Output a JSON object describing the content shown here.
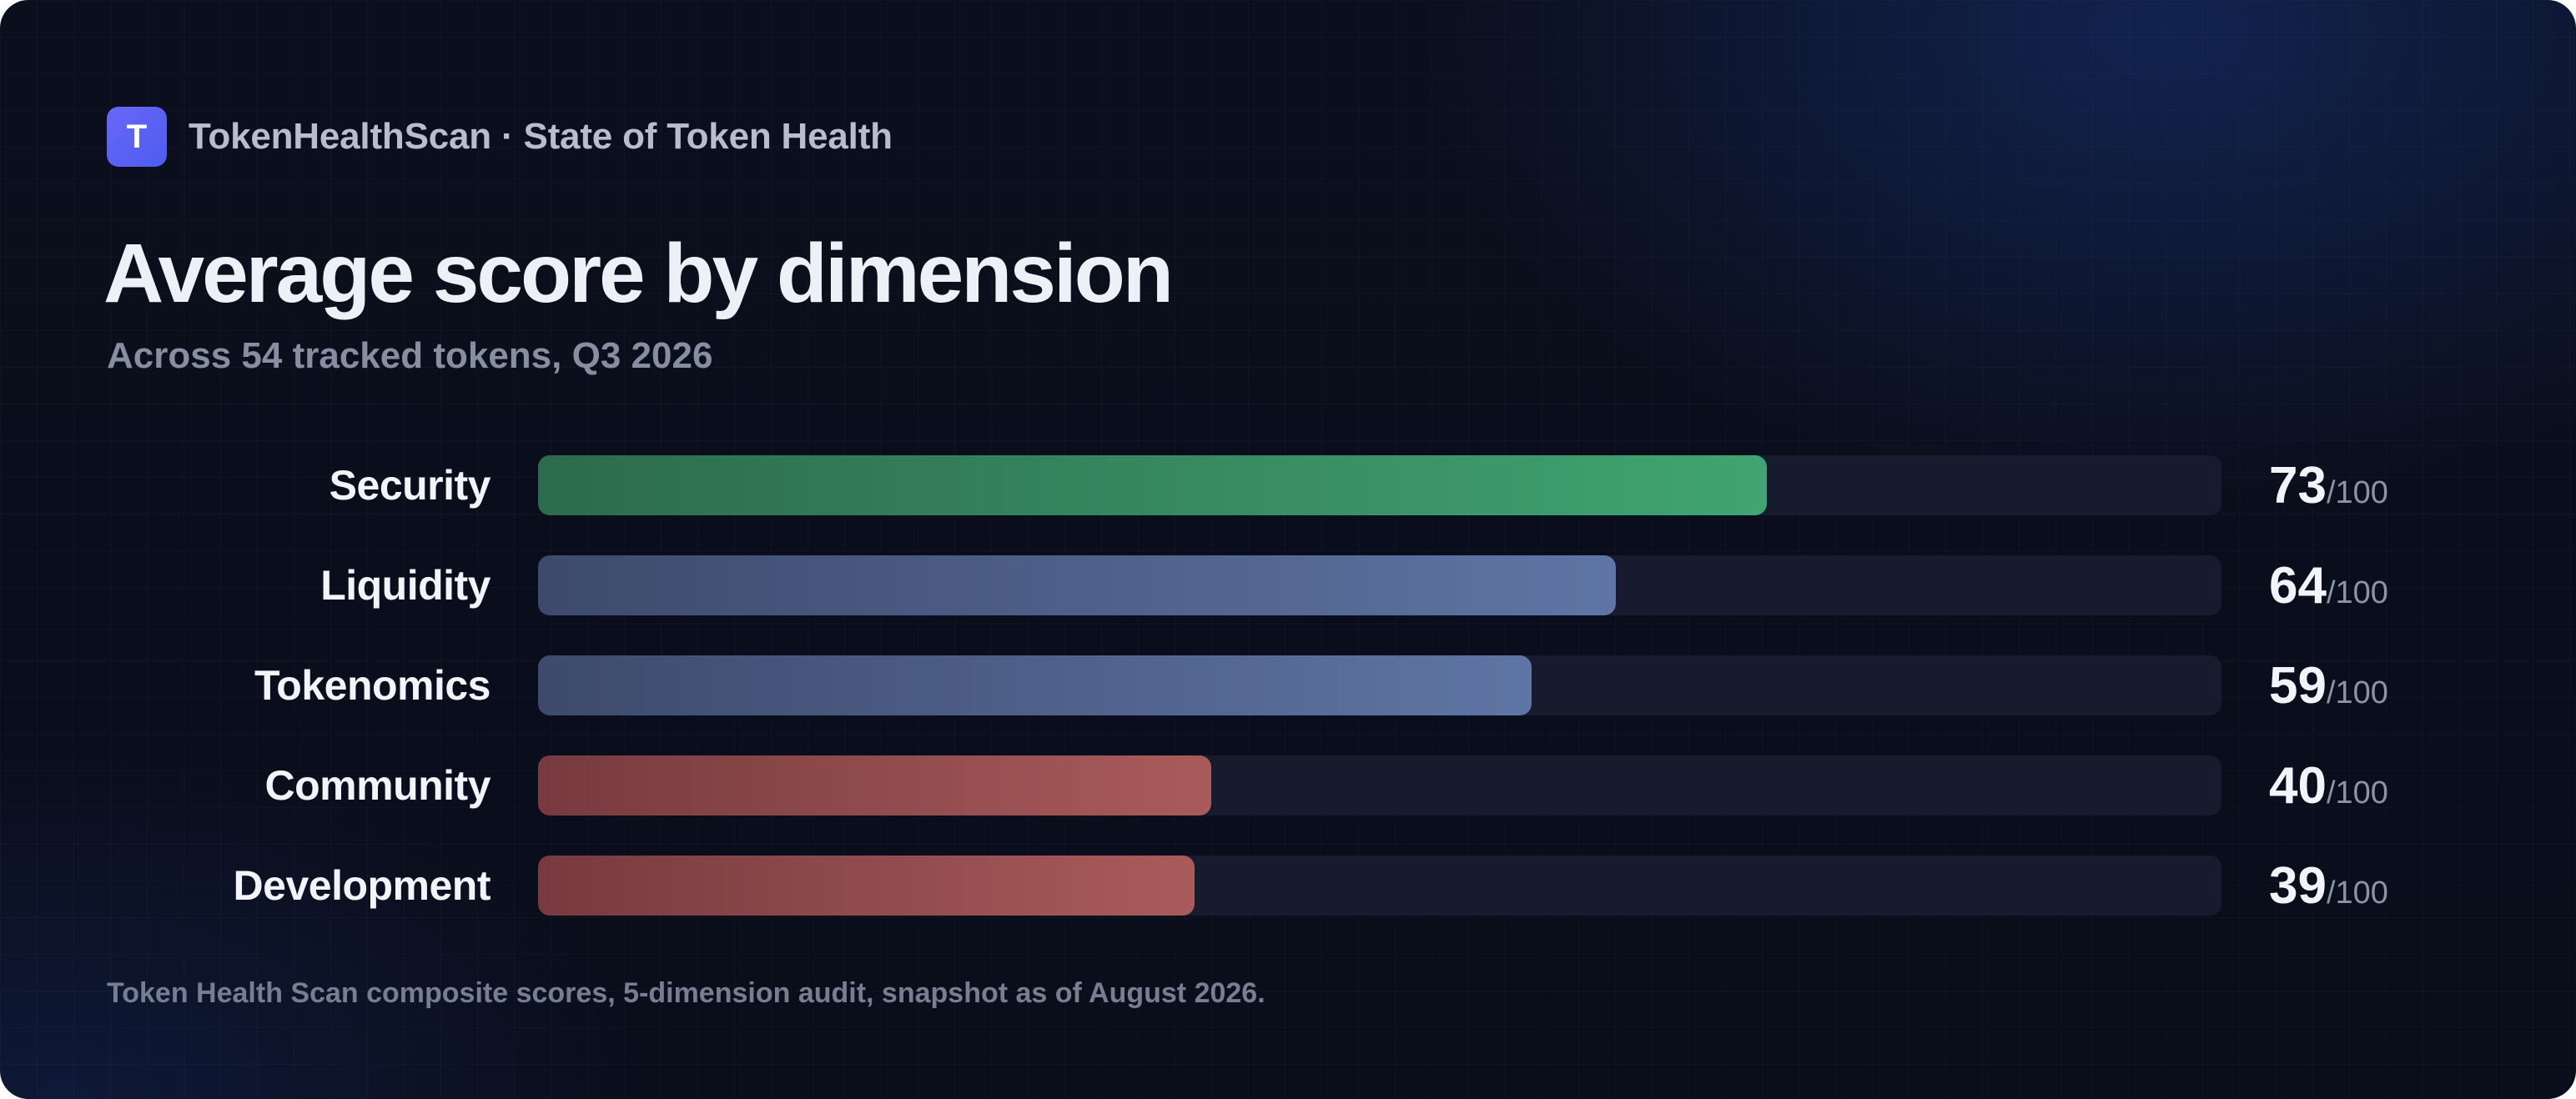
{
  "header": {
    "logo_letter": "T",
    "brand": "TokenHealthScan · State of Token Health"
  },
  "title": "Average score by dimension",
  "subtitle": "Across 54 tracked tokens, Q3 2026",
  "footnote": "Token Health Scan composite scores, 5-dimension audit, snapshot as of August 2026.",
  "colors": {
    "good": [
      "#2c6b4c",
      "#41a472"
    ],
    "neutral": [
      "#3d4a6d",
      "#5f75a5"
    ],
    "poor": [
      "#773a3f",
      "#a95b5b"
    ],
    "track": "#161c2e"
  },
  "chart_data": {
    "type": "bar",
    "orientation": "horizontal",
    "categories": [
      "Security",
      "Liquidity",
      "Tokenomics",
      "Community",
      "Development"
    ],
    "values": [
      73,
      64,
      59,
      40,
      39
    ],
    "max": 100,
    "value_suffix": "/100",
    "tiers": [
      "good",
      "neutral",
      "neutral",
      "poor",
      "poor"
    ],
    "title": "Average score by dimension",
    "subtitle": "Across 54 tracked tokens, Q3 2026",
    "xlim": [
      0,
      100
    ],
    "grid": false,
    "legend": "none"
  }
}
